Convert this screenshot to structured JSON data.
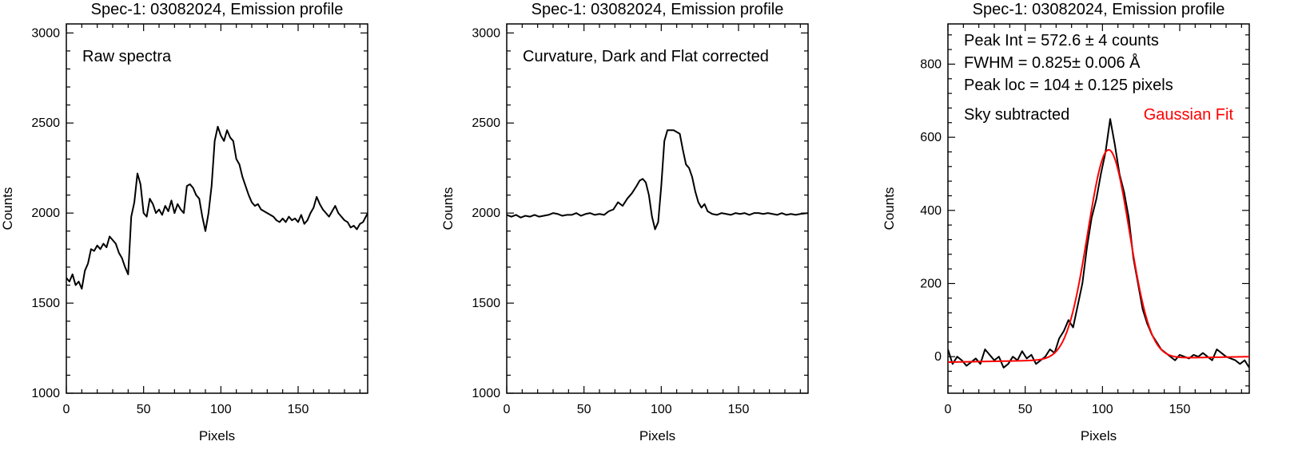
{
  "chart_data": [
    {
      "type": "line",
      "title": "Spec-1: 03082024, Emission profile",
      "xlabel": "Pixels",
      "ylabel": "Counts",
      "xlim": [
        0,
        195
      ],
      "ylim": [
        1000,
        3050
      ],
      "xticks": [
        0,
        50,
        100,
        150
      ],
      "yticks": [
        1000,
        1500,
        2000,
        2500,
        3000
      ],
      "annotations": [
        "Raw spectra"
      ],
      "series": [
        {
          "color": "#000000",
          "x": [
            0,
            2,
            4,
            6,
            8,
            10,
            12,
            14,
            16,
            18,
            20,
            22,
            24,
            26,
            28,
            30,
            32,
            34,
            36,
            38,
            40,
            42,
            44,
            46,
            48,
            50,
            52,
            54,
            56,
            58,
            60,
            62,
            64,
            66,
            68,
            70,
            72,
            74,
            76,
            78,
            80,
            82,
            84,
            86,
            88,
            90,
            92,
            94,
            96,
            98,
            100,
            102,
            104,
            106,
            108,
            110,
            112,
            114,
            116,
            118,
            120,
            122,
            124,
            126,
            128,
            130,
            132,
            134,
            136,
            138,
            140,
            142,
            144,
            146,
            148,
            150,
            152,
            154,
            156,
            158,
            160,
            162,
            164,
            166,
            168,
            170,
            172,
            174,
            176,
            178,
            180,
            182,
            184,
            186,
            188,
            190,
            192,
            195
          ],
          "y": [
            1640,
            1620,
            1660,
            1600,
            1620,
            1580,
            1680,
            1720,
            1800,
            1790,
            1820,
            1800,
            1830,
            1810,
            1870,
            1850,
            1830,
            1780,
            1750,
            1700,
            1660,
            1980,
            2060,
            2220,
            2160,
            2000,
            1980,
            2080,
            2050,
            2000,
            2020,
            1990,
            2040,
            2010,
            2070,
            2000,
            2050,
            2020,
            2000,
            2150,
            2160,
            2140,
            2100,
            2080,
            1980,
            1900,
            2000,
            2150,
            2400,
            2480,
            2430,
            2400,
            2460,
            2420,
            2400,
            2300,
            2270,
            2200,
            2150,
            2100,
            2060,
            2040,
            2050,
            2020,
            2010,
            2000,
            1990,
            1980,
            1960,
            1950,
            1970,
            1950,
            1980,
            1960,
            1970,
            1950,
            1990,
            1940,
            1960,
            2000,
            2030,
            2090,
            2050,
            2020,
            2000,
            1980,
            2010,
            2040,
            2000,
            1980,
            1960,
            1950,
            1920,
            1930,
            1910,
            1940,
            1950,
            2000
          ]
        }
      ]
    },
    {
      "type": "line",
      "title": "Spec-1: 03082024, Emission profile",
      "xlabel": "Pixels",
      "ylabel": "Counts",
      "xlim": [
        0,
        195
      ],
      "ylim": [
        1000,
        3050
      ],
      "xticks": [
        0,
        50,
        100,
        150
      ],
      "yticks": [
        1000,
        1500,
        2000,
        2500,
        3000
      ],
      "annotations": [
        "Curvature, Dark and Flat corrected"
      ],
      "series": [
        {
          "color": "#000000",
          "x": [
            0,
            3,
            6,
            9,
            12,
            15,
            18,
            21,
            24,
            27,
            30,
            33,
            36,
            39,
            42,
            45,
            48,
            51,
            54,
            57,
            60,
            63,
            66,
            69,
            72,
            75,
            78,
            81,
            84,
            86,
            88,
            90,
            92,
            94,
            96,
            98,
            100,
            102,
            104,
            106,
            108,
            110,
            112,
            114,
            116,
            118,
            120,
            122,
            124,
            126,
            128,
            130,
            133,
            136,
            139,
            142,
            145,
            148,
            151,
            154,
            157,
            160,
            163,
            166,
            169,
            172,
            175,
            178,
            181,
            184,
            187,
            190,
            195
          ],
          "y": [
            1990,
            1980,
            1990,
            1975,
            1985,
            1980,
            1990,
            1980,
            1985,
            1990,
            2000,
            1995,
            1985,
            1990,
            1990,
            2000,
            1985,
            1995,
            2000,
            1990,
            1995,
            1990,
            2010,
            2020,
            2060,
            2040,
            2080,
            2110,
            2150,
            2180,
            2190,
            2170,
            2100,
            1980,
            1910,
            1950,
            2150,
            2400,
            2460,
            2460,
            2460,
            2450,
            2440,
            2350,
            2270,
            2250,
            2200,
            2120,
            2060,
            2030,
            2050,
            2010,
            1995,
            1990,
            2000,
            1995,
            1990,
            2000,
            1995,
            2000,
            1990,
            2000,
            2000,
            1995,
            2000,
            1995,
            1990,
            2000,
            1990,
            1995,
            1990,
            1995,
            2000
          ]
        }
      ]
    },
    {
      "type": "line",
      "title": "Spec-1: 03082024, Emission profile",
      "xlabel": "Pixels",
      "ylabel": "Counts",
      "xlim": [
        0,
        195
      ],
      "ylim": [
        -100,
        910
      ],
      "xticks": [
        0,
        50,
        100,
        150
      ],
      "yticks": [
        0,
        200,
        400,
        600,
        800
      ],
      "annotations": [
        "Peak Int = 572.6 ± 4 counts",
        "FWHM = 0.825± 0.006 Å",
        "Peak loc = 104 ± 0.125 pixels",
        "Sky subtracted"
      ],
      "fit_label": "Gaussian Fit",
      "fit_color": "#ff0000",
      "series": [
        {
          "color": "#000000",
          "x": [
            0,
            3,
            6,
            9,
            12,
            15,
            18,
            21,
            24,
            27,
            30,
            33,
            36,
            39,
            42,
            45,
            48,
            51,
            54,
            57,
            60,
            63,
            66,
            69,
            72,
            75,
            78,
            81,
            84,
            87,
            90,
            93,
            96,
            99,
            102,
            105,
            108,
            111,
            114,
            117,
            120,
            123,
            126,
            129,
            132,
            135,
            138,
            141,
            144,
            147,
            150,
            153,
            156,
            159,
            162,
            165,
            168,
            171,
            174,
            177,
            180,
            183,
            186,
            189,
            192,
            195
          ],
          "y": [
            20,
            -20,
            0,
            -10,
            -25,
            -15,
            -5,
            -20,
            20,
            5,
            -10,
            0,
            -30,
            -20,
            0,
            -10,
            15,
            -5,
            5,
            -20,
            -10,
            0,
            20,
            10,
            50,
            70,
            100,
            80,
            140,
            200,
            300,
            380,
            430,
            500,
            560,
            650,
            580,
            500,
            450,
            380,
            270,
            200,
            130,
            90,
            60,
            40,
            20,
            10,
            0,
            -10,
            5,
            0,
            -5,
            5,
            0,
            10,
            0,
            -10,
            20,
            10,
            0,
            -5,
            -10,
            -20,
            -10,
            -30
          ]
        },
        {
          "name": "Gaussian Fit",
          "color": "#ff0000",
          "fit": {
            "amplitude": 572.6,
            "center": 104,
            "sigma": 13.5,
            "baseline_left": -15,
            "baseline_right": 0
          }
        }
      ]
    }
  ]
}
